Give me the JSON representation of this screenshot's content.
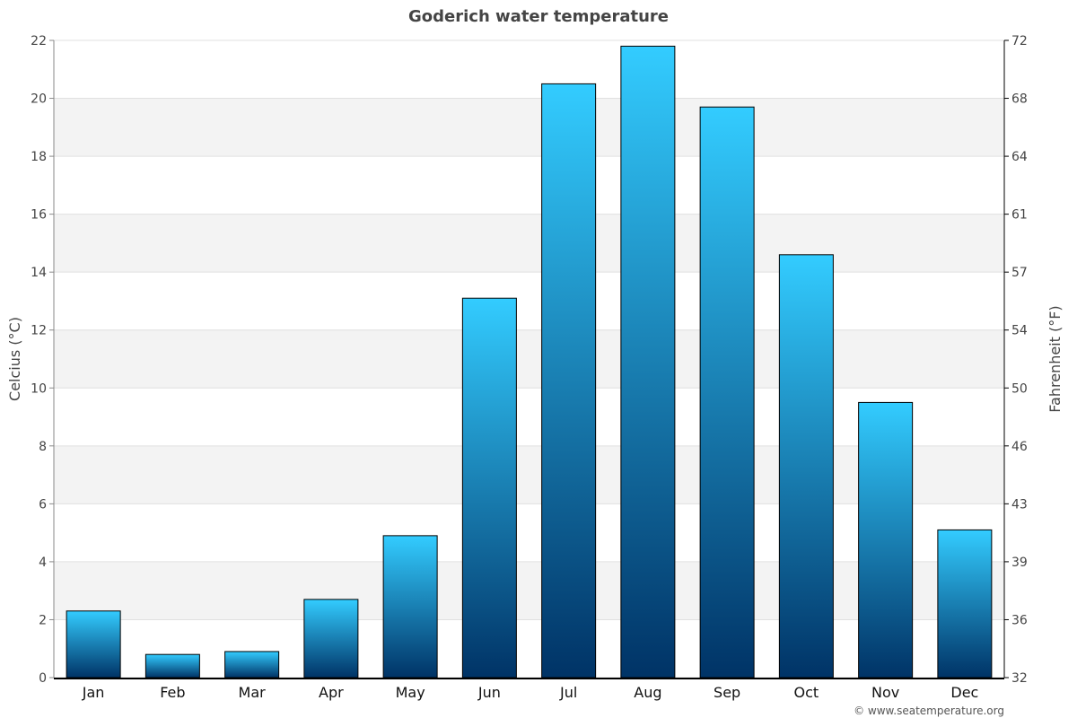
{
  "chart_data": {
    "type": "bar",
    "title": "Goderich water temperature",
    "categories": [
      "Jan",
      "Feb",
      "Mar",
      "Apr",
      "May",
      "Jun",
      "Jul",
      "Aug",
      "Sep",
      "Oct",
      "Nov",
      "Dec"
    ],
    "values": [
      2.3,
      0.8,
      0.9,
      2.7,
      4.9,
      13.1,
      20.5,
      21.8,
      19.7,
      14.6,
      9.5,
      5.1
    ],
    "ylabel": "Celcius (°C)",
    "ylabel_right": "Fahrenheit (°F)",
    "ylim": [
      0,
      22
    ],
    "yticks": [
      0,
      2,
      4,
      6,
      8,
      10,
      12,
      14,
      16,
      18,
      20,
      22
    ],
    "yticks_right": [
      32,
      36,
      39,
      43,
      46,
      50,
      54,
      57,
      61,
      64,
      68,
      72
    ],
    "grid": true,
    "bar_gradient": [
      "#33ccff",
      "#003366"
    ],
    "band_color": "#f3f3f3"
  },
  "credit": "© www.seatemperature.org"
}
